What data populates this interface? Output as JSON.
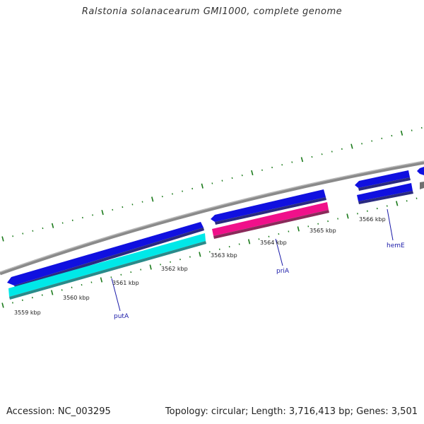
{
  "title": "Ralstonia solanacearum GMI1000, complete genome",
  "footer": {
    "accession": "Accession: NC_003295",
    "topology": "Topology: circular; Length: 3,716,413 bp; Genes: 3,501"
  },
  "colors": {
    "backbone": "#8a8a8a",
    "forward_cds": "#1010e0",
    "reverse_cds": "#00e0e0",
    "highlight_cds": "#f0108a",
    "gene_label": "#1a1aa8",
    "tick": "#1a7a1a"
  },
  "scale_labels": [
    "3559 kbp",
    "3560 kbp",
    "3561 kbp",
    "3562 kbp",
    "3563 kbp",
    "3564 kbp",
    "3565 kbp",
    "3566 kbp"
  ],
  "genes": [
    "putA",
    "priA",
    "hemE"
  ]
}
